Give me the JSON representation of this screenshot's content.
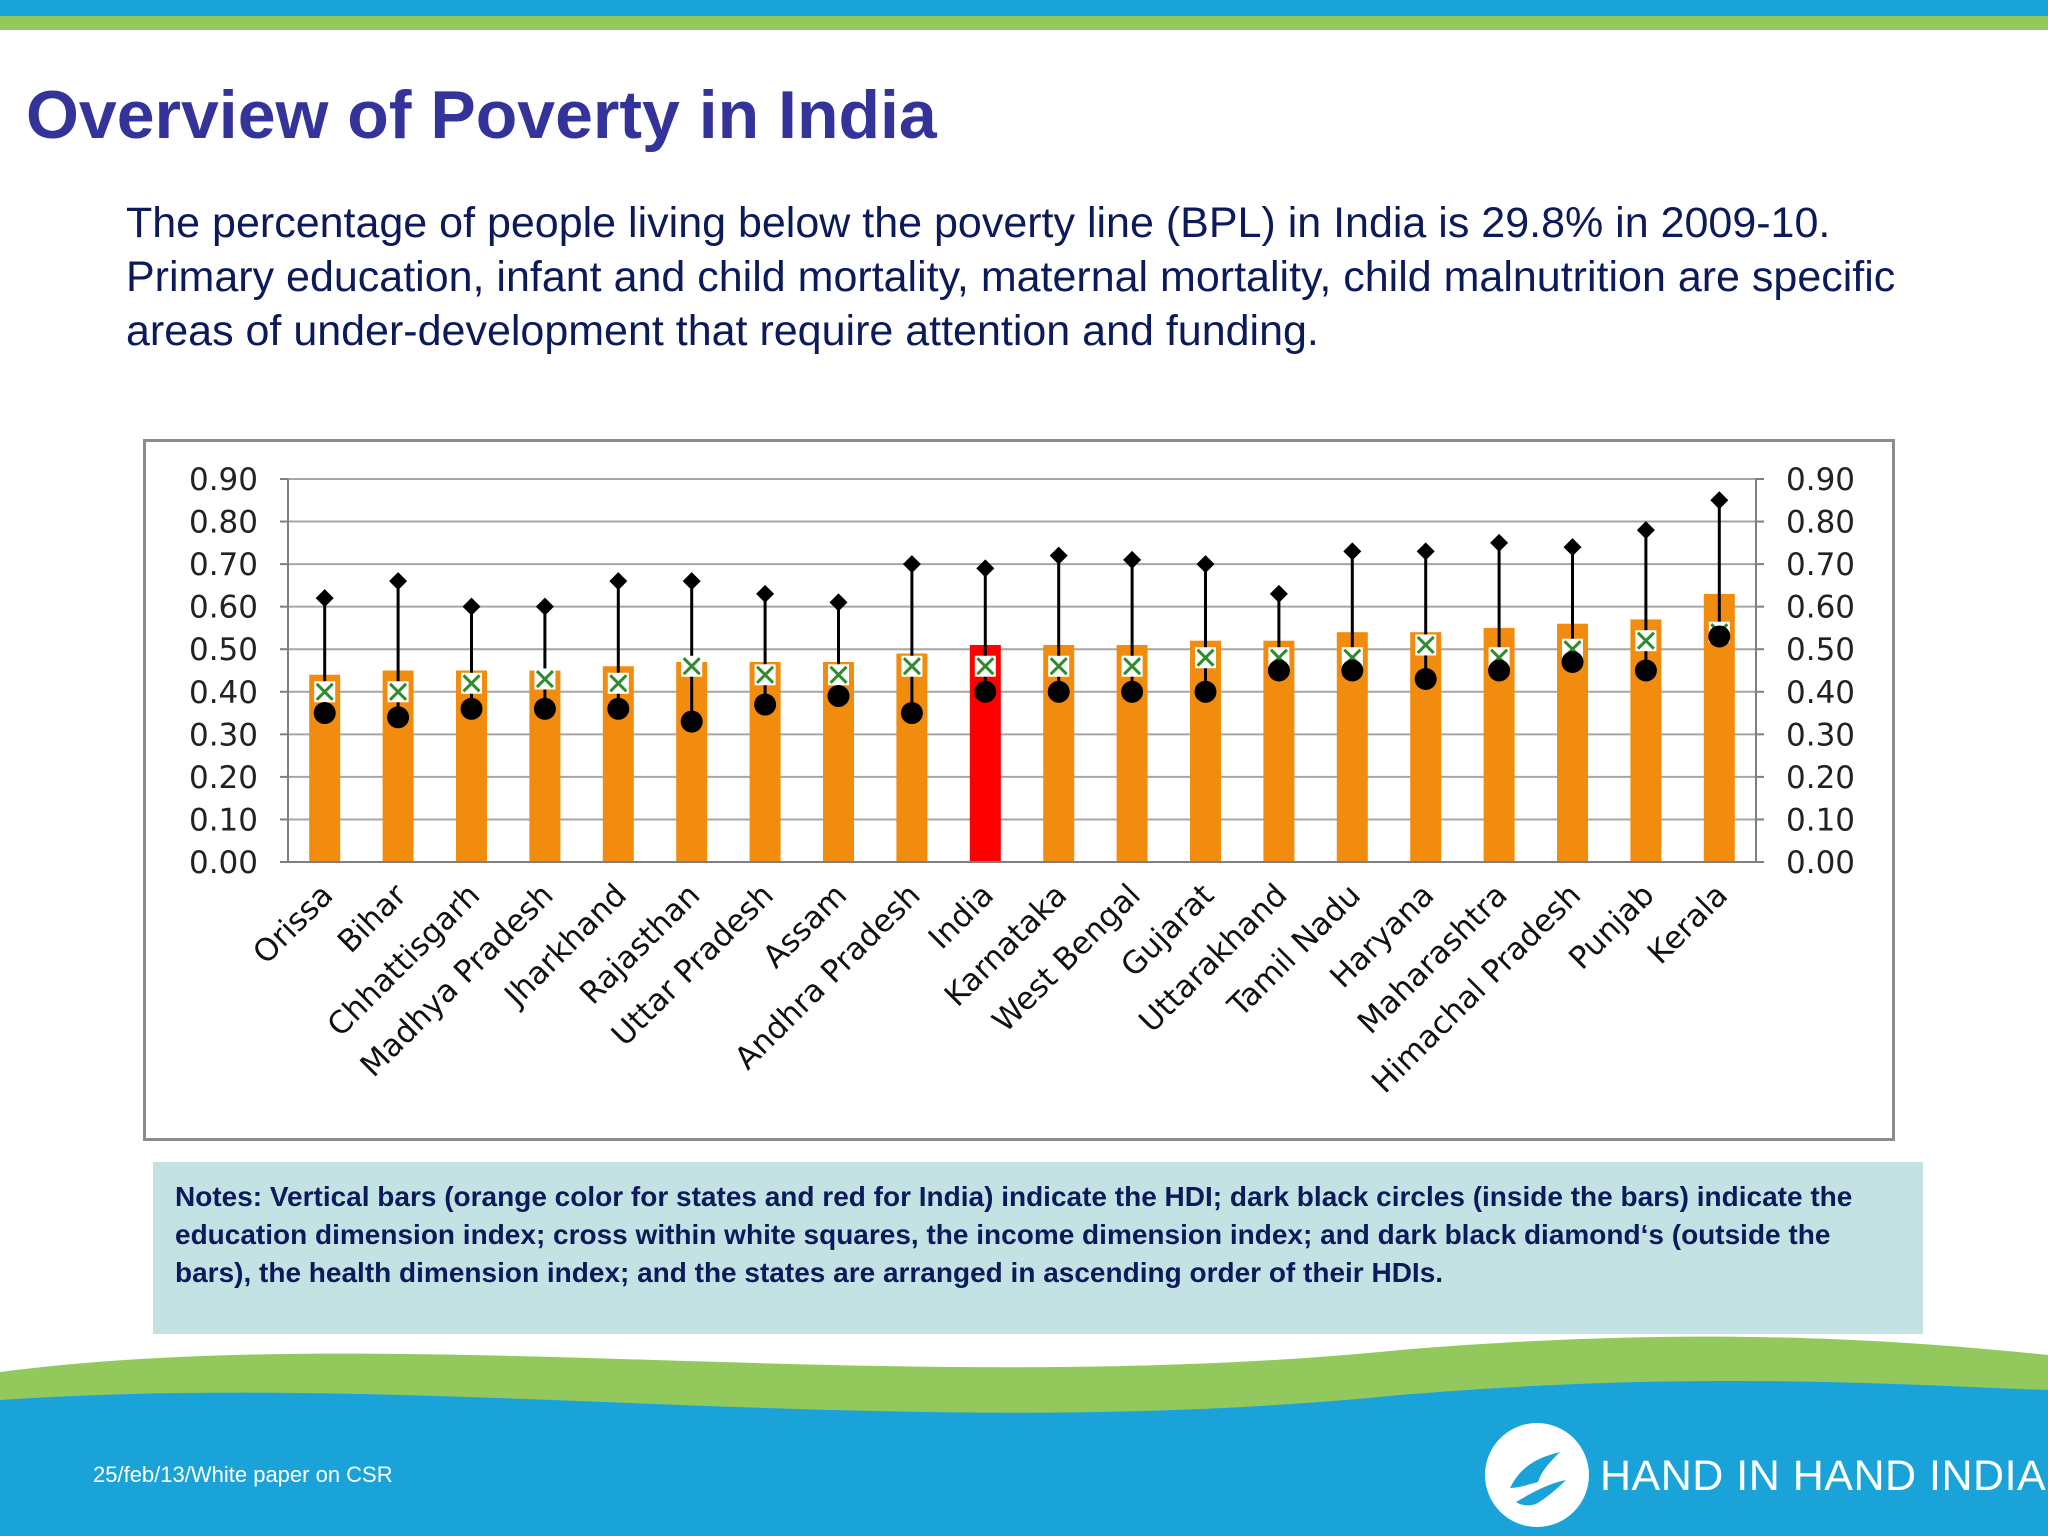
{
  "slide": {
    "title": "Overview of Poverty in India",
    "intro": "The percentage of people living below the poverty line (BPL) in India is 29.8% in 2009-10. Primary education, infant and child mortality, maternal mortality, child malnutrition are specific areas of under-development that require attention and funding.",
    "notes": "Notes: Vertical bars (orange color for states and red for India) indicate the HDI; dark black circles (inside the bars) indicate the education dimension index; cross within white squares, the income dimension index; and dark black diamond‘s (outside the bars), the health dimension index; and the states are arranged in ascending order of their HDIs.",
    "footer": "25/feb/13/White paper on CSR",
    "brand": "HAND IN HAND INDIA"
  },
  "colors": {
    "title": "#33339a",
    "state_bar": "#f28c0f",
    "india_bar": "#ff0000",
    "marker": "#000000",
    "income_cross": "#2e8b2e",
    "footer_blue": "#1aa3d8",
    "footer_green": "#93c95c"
  },
  "chart_data": {
    "type": "bar",
    "categories": [
      "Orissa",
      "Bihar",
      "Chhattisgarh",
      "Madhya Pradesh",
      "Jharkhand",
      "Rajasthan",
      "Uttar Pradesh",
      "Assam",
      "Andhra Pradesh",
      "India",
      "Karnataka",
      "West Bengal",
      "Gujarat",
      "Uttarakhand",
      "Tamil Nadu",
      "Haryana",
      "Maharashtra",
      "Himachal Pradesh",
      "Punjab",
      "Kerala"
    ],
    "highlight": "India",
    "series": [
      {
        "marker": "bar",
        "values": [
          0.44,
          0.45,
          0.45,
          0.45,
          0.46,
          0.47,
          0.47,
          0.47,
          0.49,
          0.51,
          0.51,
          0.51,
          0.52,
          0.52,
          0.54,
          0.54,
          0.55,
          0.56,
          0.57,
          0.63
        ]
      },
      {
        "marker": "circle",
        "values": [
          0.35,
          0.34,
          0.36,
          0.36,
          0.36,
          0.33,
          0.37,
          0.39,
          0.35,
          0.4,
          0.4,
          0.4,
          0.4,
          0.45,
          0.45,
          0.43,
          0.45,
          0.47,
          0.45,
          0.53
        ]
      },
      {
        "marker": "cross-square",
        "values": [
          0.4,
          0.4,
          0.42,
          0.43,
          0.42,
          0.46,
          0.44,
          0.44,
          0.46,
          0.46,
          0.46,
          0.46,
          0.48,
          0.48,
          0.48,
          0.51,
          0.48,
          0.5,
          0.52,
          0.54
        ]
      },
      {
        "marker": "diamond",
        "values": [
          0.62,
          0.66,
          0.6,
          0.6,
          0.66,
          0.66,
          0.63,
          0.61,
          0.7,
          0.69,
          0.72,
          0.71,
          0.7,
          0.63,
          0.73,
          0.73,
          0.75,
          0.74,
          0.78,
          0.85
        ]
      }
    ],
    "ylim": [
      0,
      0.9
    ],
    "yticks": [
      "0.00",
      "0.10",
      "0.20",
      "0.30",
      "0.40",
      "0.50",
      "0.60",
      "0.70",
      "0.80",
      "0.90"
    ],
    "secondary_yticks": [
      "0.00",
      "0.10",
      "0.20",
      "0.30",
      "0.40",
      "0.50",
      "0.60",
      "0.70",
      "0.80",
      "0.90"
    ],
    "grid": true,
    "title": "",
    "xlabel": "",
    "ylabel": ""
  }
}
